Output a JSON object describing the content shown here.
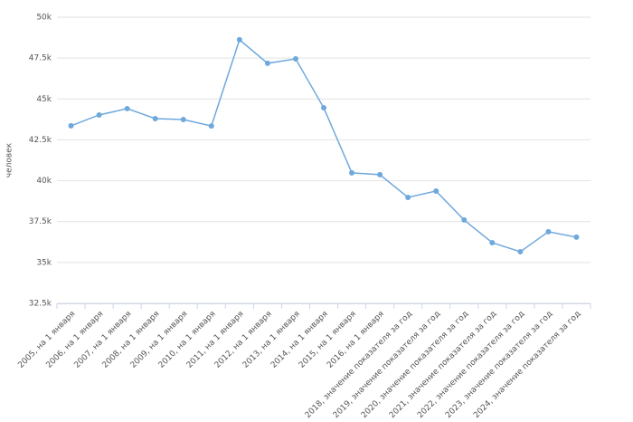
{
  "chart_data": {
    "type": "line",
    "y_label": "человек",
    "categories": [
      "2005, на 1 января",
      "2006, на 1 января",
      "2007, на 1 января",
      "2008, на 1 января",
      "2009, на 1 января",
      "2010, на 1 января",
      "2011, на 1 января",
      "2012, на 1 января",
      "2013, на 1 января",
      "2014, на 1 января",
      "2015, на 1 января",
      "2016, на 1 января",
      "2018, значение показателя за год",
      "2019, значение показателя за год",
      "2020, значение показателя за год",
      "2021, значение показателя за год",
      "2022, значение показателя за год",
      "2023, значение показателя за год",
      "2024, значение показателя за год"
    ],
    "values": [
      43360,
      44020,
      44410,
      43800,
      43740,
      43350,
      48620,
      47180,
      47450,
      44460,
      40480,
      40370,
      38980,
      39370,
      37600,
      36210,
      35660,
      36880,
      36550
    ],
    "color": "#6fa8dc",
    "ylim": [
      32500,
      50000
    ],
    "yticks": [
      {
        "value": 32500,
        "label": "32.5k"
      },
      {
        "value": 35000,
        "label": "35k"
      },
      {
        "value": 37500,
        "label": "37.5k"
      },
      {
        "value": 40000,
        "label": "40k"
      },
      {
        "value": 42500,
        "label": "42.5k"
      },
      {
        "value": 45000,
        "label": "45k"
      },
      {
        "value": 47500,
        "label": "47.5k"
      },
      {
        "value": 50000,
        "label": "50k"
      }
    ],
    "grid": true
  }
}
